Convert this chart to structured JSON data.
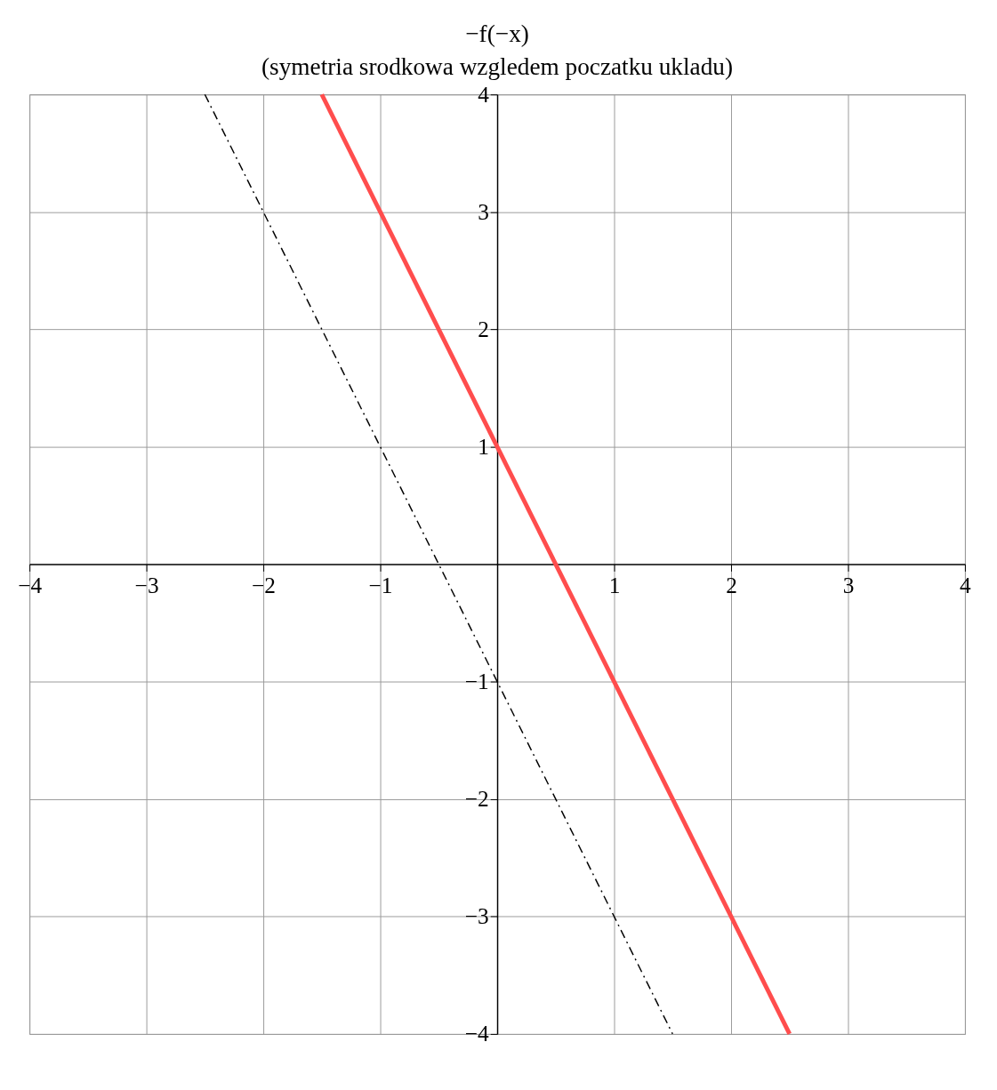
{
  "chart_data": {
    "type": "line",
    "title": "−f(−x)",
    "subtitle": "(symetria srodkowa wzgledem poczatku ukladu)",
    "xlim": [
      -4,
      4
    ],
    "ylim": [
      -4,
      4
    ],
    "xticks": [
      -4,
      -3,
      -2,
      -1,
      1,
      2,
      3,
      4
    ],
    "yticks": [
      -4,
      -3,
      -2,
      -1,
      1,
      2,
      3,
      4
    ],
    "grid": true,
    "legend": false,
    "series": [
      {
        "color": "#ff4d4d",
        "line_style": "solid",
        "x": [
          -1.5,
          2.5
        ],
        "values": [
          4,
          -4
        ]
      },
      {
        "color": "#000000",
        "line_style": "dashed",
        "x": [
          -2.5,
          1.5
        ],
        "values": [
          4,
          -4
        ]
      }
    ]
  }
}
